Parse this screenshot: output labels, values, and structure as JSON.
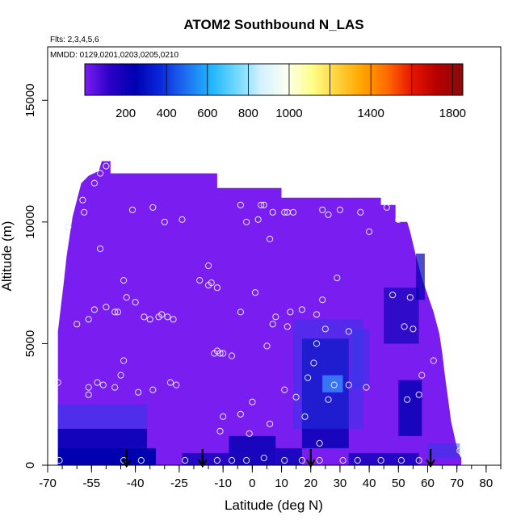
{
  "chart_data": {
    "type": "heatmap",
    "title": "ATOM2 Southbound N_LAS",
    "annotations": [
      "Flts: 2,3,4,5,6",
      "MMDD: 0129,0201,0203,0205,0210"
    ],
    "xlabel": "Latitude (deg N)",
    "ylabel": "Altitude (m)",
    "xlim": [
      -70,
      85
    ],
    "ylim": [
      0,
      17200
    ],
    "x_ticks": [
      "-70",
      "-55",
      "-40",
      "-25",
      "-10",
      "0",
      "10",
      "20",
      "30",
      "40",
      "50",
      "60",
      "70",
      "80"
    ],
    "x_tick_values": [
      -70,
      -55,
      -40,
      -25,
      -10,
      0,
      10,
      20,
      30,
      40,
      50,
      60,
      70,
      80
    ],
    "y_ticks": [
      "0",
      "5000",
      "10000",
      "15000"
    ],
    "y_tick_values": [
      0,
      5000,
      10000,
      15000
    ],
    "colorbar": {
      "range": [
        0,
        1850
      ],
      "tick_labels": [
        "200",
        "400",
        "600",
        "800",
        "1000",
        "1400",
        "1800"
      ],
      "tick_values": [
        200,
        400,
        600,
        800,
        1000,
        1400,
        1800
      ],
      "colors": [
        "#7a1df0",
        "#2a00c8",
        "#0000b0",
        "#0a28dc",
        "#1e6ef0",
        "#1eb4ff",
        "#6ed8ff",
        "#d4f2ff",
        "#fafff0",
        "#ffff8c",
        "#ffd23c",
        "#ffa500",
        "#ff6a00",
        "#e61400",
        "#b40000",
        "#8c0a0a"
      ]
    },
    "colors": {
      "background_field": "#7a1df0",
      "low_value": "#0000b0",
      "mid_low": "#2a3ce6",
      "sample_marker": "#e6e6ff",
      "arrow": "#000000"
    },
    "sample_points": [
      [
        -60,
        5800
      ],
      [
        -66.5,
        3400
      ],
      [
        -63,
        9800
      ],
      [
        -57.5,
        10400
      ],
      [
        -58,
        10900
      ],
      [
        -54,
        11600
      ],
      [
        -52,
        12000
      ],
      [
        -50,
        12300
      ],
      [
        -56,
        3200
      ],
      [
        -53,
        3400
      ],
      [
        -56,
        2900
      ],
      [
        -51,
        3300
      ],
      [
        -47,
        3200
      ],
      [
        -45,
        3700
      ],
      [
        -44,
        4300
      ],
      [
        -47,
        6300
      ],
      [
        -46,
        6300
      ],
      [
        -50,
        6500
      ],
      [
        -54,
        6400
      ],
      [
        -56,
        6000
      ],
      [
        -52,
        8900
      ],
      [
        -44,
        7600
      ],
      [
        -43,
        6900
      ],
      [
        -40,
        6700
      ],
      [
        -37,
        6100
      ],
      [
        -35,
        6000
      ],
      [
        -32,
        6100
      ],
      [
        -31,
        6200
      ],
      [
        -29,
        6100
      ],
      [
        -27,
        6000
      ],
      [
        -39,
        3000
      ],
      [
        -34,
        3100
      ],
      [
        -28,
        3400
      ],
      [
        -26,
        3300
      ],
      [
        -41,
        10500
      ],
      [
        -34,
        10600
      ],
      [
        -30,
        10000
      ],
      [
        -24,
        10100
      ],
      [
        -18,
        7600
      ],
      [
        -15,
        7400
      ],
      [
        -14,
        7500
      ],
      [
        -12,
        7300
      ],
      [
        -15,
        8200
      ],
      [
        -12,
        4700
      ],
      [
        -11,
        4600
      ],
      [
        -10,
        4600
      ],
      [
        -13,
        4600
      ],
      [
        -7,
        4500
      ],
      [
        -4,
        10700
      ],
      [
        -2,
        10000
      ],
      [
        2,
        10100
      ],
      [
        3,
        10700
      ],
      [
        4,
        10700
      ],
      [
        7,
        10400
      ],
      [
        11,
        10400
      ],
      [
        12,
        10400
      ],
      [
        14,
        10400
      ],
      [
        6,
        9300
      ],
      [
        1,
        7100
      ],
      [
        -4,
        6300
      ],
      [
        7,
        5800
      ],
      [
        13,
        6300
      ],
      [
        17,
        6400
      ],
      [
        22,
        6200
      ],
      [
        24,
        6800
      ],
      [
        25,
        5600
      ],
      [
        33,
        5500
      ],
      [
        29,
        7700
      ],
      [
        37,
        10400
      ],
      [
        26,
        10300
      ],
      [
        24,
        10500
      ],
      [
        30,
        10500
      ],
      [
        40,
        9600
      ],
      [
        46,
        10600
      ],
      [
        50,
        10100
      ],
      [
        54,
        6900
      ],
      [
        48,
        7000
      ],
      [
        52,
        5700
      ],
      [
        55,
        5600
      ],
      [
        22,
        5000
      ],
      [
        21,
        4200
      ],
      [
        19,
        3600
      ],
      [
        15,
        2800
      ],
      [
        11,
        3100
      ],
      [
        5,
        4900
      ],
      [
        8,
        6100
      ],
      [
        12,
        5700
      ],
      [
        26,
        2700
      ],
      [
        28,
        3300
      ],
      [
        33,
        3300
      ],
      [
        39,
        3200
      ],
      [
        53,
        2700
      ],
      [
        57,
        2900
      ],
      [
        58,
        3700
      ],
      [
        62,
        4300
      ],
      [
        -10,
        2000
      ],
      [
        -11,
        1400
      ],
      [
        -4,
        2100
      ],
      [
        0,
        2600
      ],
      [
        6,
        1700
      ],
      [
        -1,
        1300
      ],
      [
        18,
        2000
      ],
      [
        23,
        900
      ],
      [
        -66,
        200
      ],
      [
        -44,
        200
      ],
      [
        -38,
        200
      ],
      [
        -23,
        200
      ],
      [
        -12,
        200
      ],
      [
        -7,
        200
      ],
      [
        -2,
        200
      ],
      [
        4,
        300
      ],
      [
        11,
        200
      ],
      [
        17,
        200
      ],
      [
        23,
        200
      ],
      [
        31,
        200
      ],
      [
        36,
        200
      ],
      [
        44,
        200
      ],
      [
        51,
        200
      ],
      [
        57,
        200
      ],
      [
        71,
        600
      ]
    ],
    "arrow_markers_lat": [
      -43,
      -17,
      20,
      61
    ]
  }
}
